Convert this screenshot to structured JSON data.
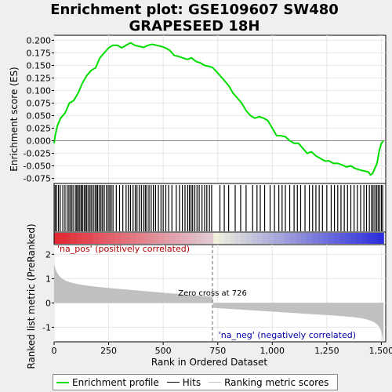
{
  "title_line1": "Enrichment plot: GSE109607 SW480",
  "title_line2": "GRAPESEED 18H",
  "chart_data": {
    "type": "line",
    "xlabel": "Rank in Ordered Dataset",
    "ylabel_top": "Enrichment score (ES)",
    "ylabel_bottom": "Ranked list metric (PreRanked)",
    "x_ticks": [
      "0",
      "250",
      "500",
      "750",
      "1,000",
      "1,250",
      "1,500"
    ],
    "x_tick_values": [
      0,
      250,
      500,
      750,
      1000,
      1250,
      1500
    ],
    "xlim": [
      0,
      1520
    ],
    "es_y_ticks": [
      "0.200",
      "0.175",
      "0.150",
      "0.125",
      "0.100",
      "0.075",
      "0.050",
      "0.025",
      "0.000",
      "-0.025",
      "-0.050",
      "-0.075"
    ],
    "es_y_tick_values": [
      0.2,
      0.175,
      0.15,
      0.125,
      0.1,
      0.075,
      0.05,
      0.025,
      0.0,
      -0.025,
      -0.05,
      -0.075
    ],
    "es_ylim": [
      -0.085,
      0.21
    ],
    "metric_y_ticks": [
      "2",
      "1",
      "0",
      "-1"
    ],
    "metric_y_tick_values": [
      2,
      1,
      0,
      -1
    ],
    "metric_ylim": [
      -1.6,
      2.4
    ],
    "enrichment_profile": {
      "name": "Enrichment profile",
      "x": [
        0,
        5,
        15,
        30,
        50,
        70,
        90,
        110,
        130,
        150,
        170,
        190,
        210,
        230,
        250,
        270,
        290,
        310,
        330,
        350,
        370,
        390,
        410,
        430,
        450,
        470,
        490,
        510,
        530,
        550,
        570,
        590,
        610,
        630,
        650,
        670,
        690,
        710,
        726,
        750,
        780,
        800,
        820,
        840,
        860,
        880,
        900,
        920,
        940,
        960,
        980,
        1000,
        1020,
        1040,
        1060,
        1080,
        1100,
        1120,
        1140,
        1160,
        1180,
        1200,
        1220,
        1240,
        1260,
        1280,
        1300,
        1320,
        1340,
        1360,
        1380,
        1400,
        1420,
        1440,
        1450,
        1460,
        1470,
        1480,
        1490,
        1500,
        1510
      ],
      "y": [
        -0.005,
        0.01,
        0.03,
        0.045,
        0.055,
        0.075,
        0.08,
        0.095,
        0.115,
        0.13,
        0.14,
        0.145,
        0.165,
        0.175,
        0.185,
        0.19,
        0.19,
        0.185,
        0.19,
        0.195,
        0.19,
        0.188,
        0.186,
        0.19,
        0.192,
        0.19,
        0.188,
        0.185,
        0.18,
        0.17,
        0.168,
        0.165,
        0.162,
        0.165,
        0.158,
        0.155,
        0.15,
        0.148,
        0.146,
        0.135,
        0.12,
        0.11,
        0.095,
        0.085,
        0.075,
        0.06,
        0.05,
        0.045,
        0.048,
        0.045,
        0.04,
        0.025,
        0.01,
        0.01,
        0.008,
        0.0,
        -0.005,
        -0.005,
        -0.015,
        -0.025,
        -0.022,
        -0.03,
        -0.035,
        -0.04,
        -0.04,
        -0.045,
        -0.045,
        -0.048,
        -0.052,
        -0.05,
        -0.055,
        -0.058,
        -0.06,
        -0.062,
        -0.068,
        -0.065,
        -0.055,
        -0.045,
        -0.02,
        -0.005,
        0.0
      ]
    },
    "hits_x": [
      5,
      12,
      20,
      28,
      40,
      50,
      60,
      68,
      75,
      82,
      90,
      100,
      105,
      112,
      118,
      125,
      130,
      138,
      145,
      150,
      158,
      165,
      172,
      180,
      188,
      195,
      200,
      208,
      215,
      222,
      230,
      240,
      248,
      255,
      262,
      270,
      285,
      300,
      315,
      330,
      340,
      350,
      362,
      372,
      380,
      390,
      400,
      410,
      418,
      425,
      435,
      445,
      455,
      465,
      478,
      490,
      500,
      512,
      525,
      540,
      560,
      575,
      588,
      600,
      612,
      620,
      628,
      635,
      645,
      655,
      665,
      678,
      690,
      700,
      712,
      722,
      760,
      780,
      800,
      830,
      855,
      880,
      910,
      930,
      945,
      965,
      990,
      1010,
      1030,
      1045,
      1060,
      1080,
      1100,
      1115,
      1130,
      1150,
      1170,
      1185,
      1200,
      1215,
      1230,
      1250,
      1270,
      1285,
      1300,
      1315,
      1330,
      1345,
      1360,
      1375,
      1390,
      1405,
      1420,
      1432,
      1445,
      1455,
      1462,
      1470,
      1478,
      1485,
      1492,
      1500,
      1506
    ],
    "zero_cross": 726,
    "zero_cross_label": "Zero cross at 726",
    "pos_label": "'na_pos' (positively correlated)",
    "neg_label": "'na_neg' (negatively correlated)",
    "n_genes": 1510
  },
  "legend": {
    "enrichment": "Enrichment profile",
    "hits": "Hits",
    "ranking": "Ranking metric scores"
  },
  "colors": {
    "enrichment": "#00dd00",
    "hits": "#000000",
    "ranking": "#c0c0c0",
    "pos": "#e02030",
    "neg": "#2020e0"
  }
}
